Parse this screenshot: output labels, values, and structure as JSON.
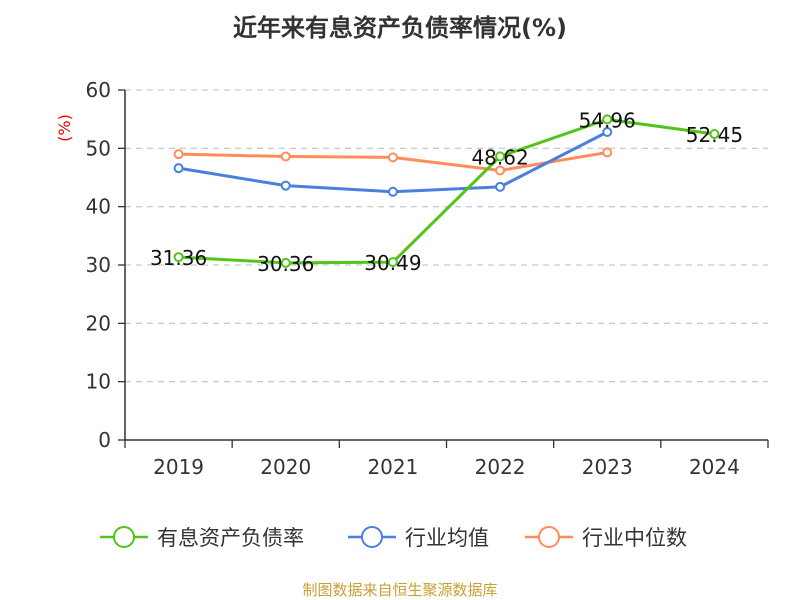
{
  "chart_data": {
    "type": "line",
    "title": "近年来有息资产负债率情况(%)",
    "ylabel": "(%)",
    "categories": [
      "2019",
      "2020",
      "2021",
      "2022",
      "2023",
      "2024"
    ],
    "ylim": [
      0,
      60
    ],
    "yticks": [
      0,
      10,
      20,
      30,
      40,
      50,
      60
    ],
    "grid": true,
    "legend_position": "bottom",
    "series": [
      {
        "name": "有息资产负债率",
        "color": "#52c41a",
        "values": [
          31.36,
          30.36,
          30.49,
          48.62,
          54.96,
          52.45
        ],
        "labels": [
          "31.36",
          "30.36",
          "30.49",
          "48.62",
          "54.96",
          "52.45"
        ]
      },
      {
        "name": "行业均值",
        "color": "#4a7fe0",
        "values": [
          46.6,
          43.6,
          42.55,
          43.4,
          52.8,
          null
        ]
      },
      {
        "name": "行业中位数",
        "color": "#ff8c5a",
        "values": [
          49.0,
          48.6,
          48.45,
          46.2,
          49.3,
          null
        ]
      }
    ]
  },
  "source": "制图数据来自恒生聚源数据库"
}
